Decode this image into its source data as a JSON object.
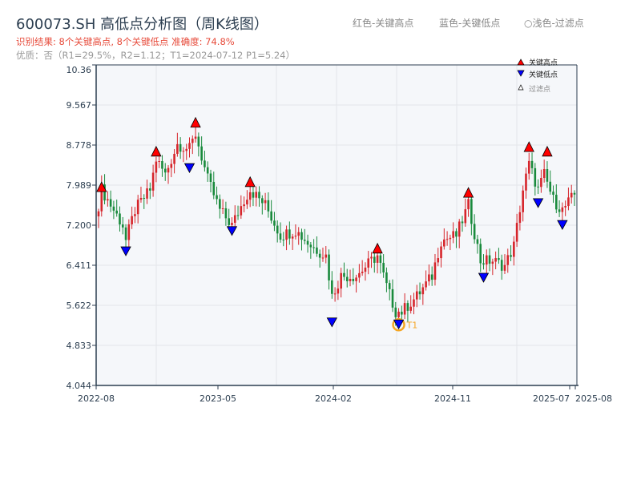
{
  "title": "600073.SH 高低点分析图（周K线图）",
  "result_line": "识别结果: 8个关键高点, 8个关键低点  准确度: 74.8%",
  "quality_line": "优质：否（R1=29.5%，R2=1.12；T1=2024-07-12 P1=5.24）",
  "top_legend": [
    "红色-关键高点",
    "蓝色-关键低点",
    "○浅色-过滤点"
  ],
  "colors": {
    "up": "#d6252b",
    "down": "#198a3c",
    "high_marker": "#ff0000",
    "low_marker": "#0000ff",
    "t1_ring": "#f5a623",
    "plot_bg": "#f5f7fa",
    "axis": "#2c3e50"
  },
  "chart_data": {
    "type": "candlestick",
    "title": "600073.SH 高低点分析图（周K线图）",
    "ylim": [
      4.044,
      10.36
    ],
    "yticks": [
      "10.36",
      "9.567",
      "8.778",
      "7.989",
      "7.200",
      "6.411",
      "5.622",
      "4.833",
      "4.044"
    ],
    "xticks": [
      "2022-08",
      "2023-05",
      "2024-02",
      "2024-11",
      "2025-07",
      "2025-08"
    ],
    "grid": true,
    "legend_position": "top-right",
    "legend": [
      "关键高点",
      "关键低点",
      "过滤点"
    ],
    "approx_weekly_close": [
      {
        "week": 0,
        "close": 7.6
      },
      {
        "week": 1,
        "close": 7.9
      },
      {
        "week": 8,
        "close": 7.2
      },
      {
        "week": 9,
        "close": 6.9
      },
      {
        "week": 12,
        "close": 7.5
      },
      {
        "week": 17,
        "close": 7.9
      },
      {
        "week": 19,
        "close": 8.5
      },
      {
        "week": 22,
        "close": 8.2
      },
      {
        "week": 26,
        "close": 8.8
      },
      {
        "week": 30,
        "close": 8.7
      },
      {
        "week": 32,
        "close": 9.0
      },
      {
        "week": 36,
        "close": 8.1
      },
      {
        "week": 40,
        "close": 7.5
      },
      {
        "week": 44,
        "close": 7.2
      },
      {
        "week": 48,
        "close": 7.7
      },
      {
        "week": 50,
        "close": 7.9
      },
      {
        "week": 55,
        "close": 7.6
      },
      {
        "week": 60,
        "close": 7.0
      },
      {
        "week": 65,
        "close": 7.1
      },
      {
        "week": 70,
        "close": 6.8
      },
      {
        "week": 75,
        "close": 6.6
      },
      {
        "week": 77,
        "close": 5.8
      },
      {
        "week": 80,
        "close": 6.2
      },
      {
        "week": 85,
        "close": 6.2
      },
      {
        "week": 90,
        "close": 6.5
      },
      {
        "week": 92,
        "close": 6.6
      },
      {
        "week": 95,
        "close": 6.0
      },
      {
        "week": 98,
        "close": 5.5
      },
      {
        "week": 100,
        "close": 5.5
      },
      {
        "week": 105,
        "close": 5.8
      },
      {
        "week": 110,
        "close": 6.2
      },
      {
        "week": 113,
        "close": 6.9
      },
      {
        "week": 118,
        "close": 7.0
      },
      {
        "week": 122,
        "close": 7.6
      },
      {
        "week": 126,
        "close": 6.5
      },
      {
        "week": 130,
        "close": 6.5
      },
      {
        "week": 134,
        "close": 6.4
      },
      {
        "week": 137,
        "close": 6.8
      },
      {
        "week": 140,
        "close": 7.9
      },
      {
        "week": 142,
        "close": 8.4
      },
      {
        "week": 145,
        "close": 7.9
      },
      {
        "week": 147,
        "close": 8.2
      },
      {
        "week": 150,
        "close": 7.7
      },
      {
        "week": 153,
        "close": 7.5
      },
      {
        "week": 157,
        "close": 7.8
      }
    ],
    "key_highs": [
      {
        "week": 1,
        "price": 7.91
      },
      {
        "week": 19,
        "price": 8.61
      },
      {
        "week": 32,
        "price": 9.18
      },
      {
        "week": 50,
        "price": 8.01
      },
      {
        "week": 92,
        "price": 6.7
      },
      {
        "week": 122,
        "price": 7.8
      },
      {
        "week": 142,
        "price": 8.7
      },
      {
        "week": 148,
        "price": 8.61
      }
    ],
    "key_lows": [
      {
        "week": 9,
        "price": 6.68
      },
      {
        "week": 30,
        "price": 8.32
      },
      {
        "week": 44,
        "price": 7.08
      },
      {
        "week": 77,
        "price": 5.28
      },
      {
        "week": 99,
        "price": 5.24,
        "label": "T1"
      },
      {
        "week": 127,
        "price": 6.16
      },
      {
        "week": 145,
        "price": 7.63
      },
      {
        "week": 153,
        "price": 7.2
      }
    ],
    "t1_label": "T1"
  }
}
